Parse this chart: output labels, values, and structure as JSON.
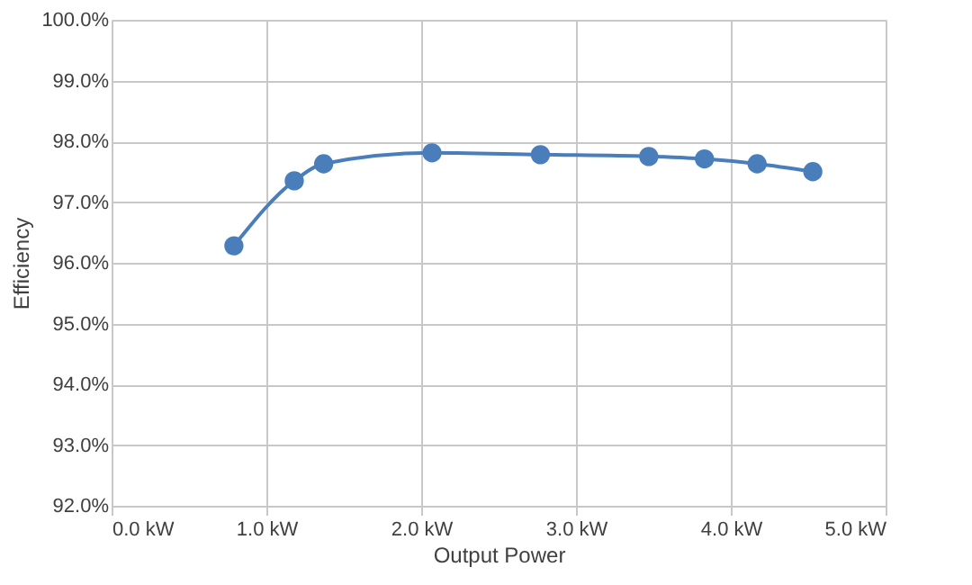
{
  "chart_data": {
    "type": "line",
    "xlabel": "Output Power",
    "ylabel": "Efficiency",
    "x": [
      0.79,
      1.18,
      1.37,
      2.07,
      2.77,
      3.47,
      3.83,
      4.17,
      4.53
    ],
    "series": [
      {
        "color": "#4a7ebb",
        "values": [
          96.28,
          97.35,
          97.63,
          97.81,
          97.78,
          97.75,
          97.71,
          97.63,
          97.5
        ]
      }
    ],
    "xlim": [
      0,
      5
    ],
    "ylim": [
      92,
      100
    ],
    "xticks": [
      {
        "value": 0,
        "label": "0.0 kW"
      },
      {
        "value": 1,
        "label": "1.0 kW"
      },
      {
        "value": 2,
        "label": "2.0 kW"
      },
      {
        "value": 3,
        "label": "3.0 kW"
      },
      {
        "value": 4,
        "label": "4.0 kW"
      },
      {
        "value": 5,
        "label": "5.0 kW"
      }
    ],
    "yticks": [
      {
        "value": 92,
        "label": "92.0%"
      },
      {
        "value": 93,
        "label": "93.0%"
      },
      {
        "value": 94,
        "label": "94.0%"
      },
      {
        "value": 95,
        "label": "95.0%"
      },
      {
        "value": 96,
        "label": "96.0%"
      },
      {
        "value": 97,
        "label": "97.0%"
      },
      {
        "value": 98,
        "label": "98.0%"
      },
      {
        "value": 99,
        "label": "99.0%"
      },
      {
        "value": 100,
        "label": "100.0%"
      }
    ],
    "grid": true,
    "marker": "circle",
    "line_style": "solid",
    "legend": false
  }
}
